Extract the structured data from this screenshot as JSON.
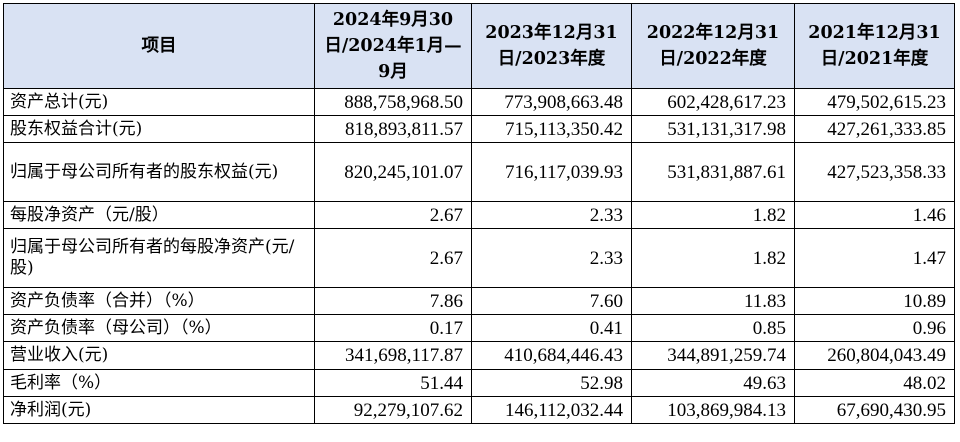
{
  "table": {
    "header": {
      "item": "项目",
      "periods": [
        "2024年9月30日/2024年1月—9月",
        "2023年12月31日/2023年度",
        "2022年12月31日/2022年度",
        "2021年12月31日/2021年度"
      ]
    },
    "rows": [
      {
        "label": "资产总计(元)",
        "values": [
          "888,758,968.50",
          "773,908,663.48",
          "602,428,617.23",
          "479,502,615.23"
        ]
      },
      {
        "label": "股东权益合计(元)",
        "values": [
          "818,893,811.57",
          "715,113,350.42",
          "531,131,317.98",
          "427,261,333.85"
        ]
      },
      {
        "label": "归属于母公司所有者的股东权益(元)",
        "values": [
          "820,245,101.07",
          "716,117,039.93",
          "531,831,887.61",
          "427,523,358.33"
        ]
      },
      {
        "label": "每股净资产（元/股）",
        "values": [
          "2.67",
          "2.33",
          "1.82",
          "1.46"
        ]
      },
      {
        "label": "归属于母公司所有者的每股净资产(元/股)",
        "values": [
          "2.67",
          "2.33",
          "1.82",
          "1.47"
        ]
      },
      {
        "label": "资产负债率（合并）（%）",
        "values": [
          "7.86",
          "7.60",
          "11.83",
          "10.89"
        ]
      },
      {
        "label": "资产负债率（母公司）（%）",
        "values": [
          "0.17",
          "0.41",
          "0.85",
          "0.96"
        ]
      },
      {
        "label": "营业收入(元)",
        "values": [
          "341,698,117.87",
          "410,684,446.43",
          "344,891,259.74",
          "260,804,043.49"
        ]
      },
      {
        "label": "毛利率（%）",
        "values": [
          "51.44",
          "52.98",
          "49.63",
          "48.02"
        ]
      },
      {
        "label": "净利润(元)",
        "values": [
          "92,279,107.62",
          "146,112,032.44",
          "103,869,984.13",
          "67,690,430.95"
        ]
      }
    ]
  }
}
